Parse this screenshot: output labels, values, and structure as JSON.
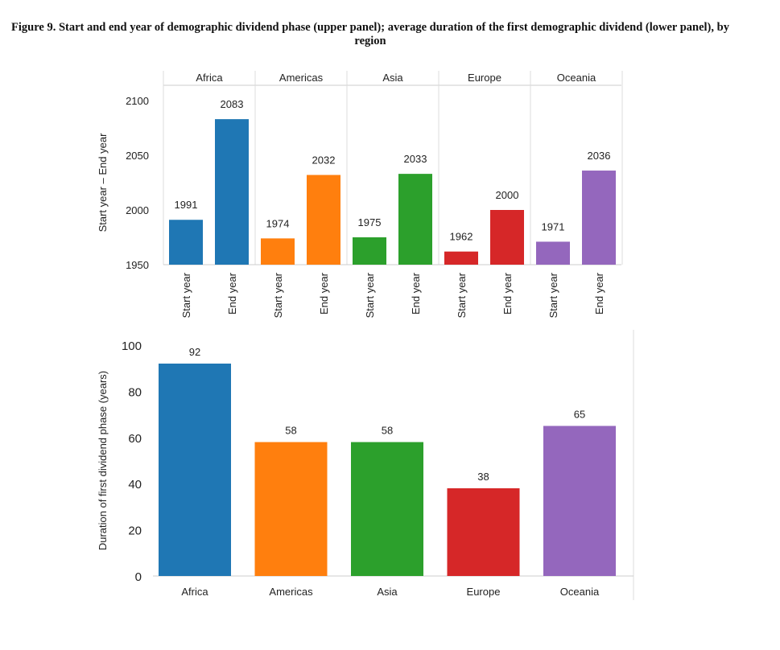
{
  "figure_title": "Figure 9. Start and end year of demographic dividend phase (upper panel); average duration of the first demographic dividend (lower panel), by region",
  "chart_data": [
    {
      "type": "bar",
      "panel": "upper",
      "ylabel": "Start year – End year",
      "ylim": [
        1950,
        2100
      ],
      "yticks": [
        1950,
        2000,
        2050,
        2100
      ],
      "x_labels": [
        "Start year",
        "End year"
      ],
      "groups": [
        {
          "name": "Africa",
          "color": "#1f77b4",
          "start": 1991,
          "end": 2083
        },
        {
          "name": "Americas",
          "color": "#ff7f0e",
          "start": 1974,
          "end": 2032
        },
        {
          "name": "Asia",
          "color": "#2ca02c",
          "start": 1975,
          "end": 2033
        },
        {
          "name": "Europe",
          "color": "#d62728",
          "start": 1962,
          "end": 2000
        },
        {
          "name": "Oceania",
          "color": "#9467bd",
          "start": 1971,
          "end": 2036
        }
      ]
    },
    {
      "type": "bar",
      "panel": "lower",
      "ylabel": "Duration of first dividend phase (years)",
      "ylim": [
        0,
        100
      ],
      "yticks": [
        0,
        20,
        40,
        60,
        80,
        100
      ],
      "categories": [
        "Africa",
        "Americas",
        "Asia",
        "Europe",
        "Oceania"
      ],
      "values": [
        92,
        58,
        58,
        38,
        65
      ],
      "colors": [
        "#1f77b4",
        "#ff7f0e",
        "#2ca02c",
        "#d62728",
        "#9467bd"
      ]
    }
  ]
}
